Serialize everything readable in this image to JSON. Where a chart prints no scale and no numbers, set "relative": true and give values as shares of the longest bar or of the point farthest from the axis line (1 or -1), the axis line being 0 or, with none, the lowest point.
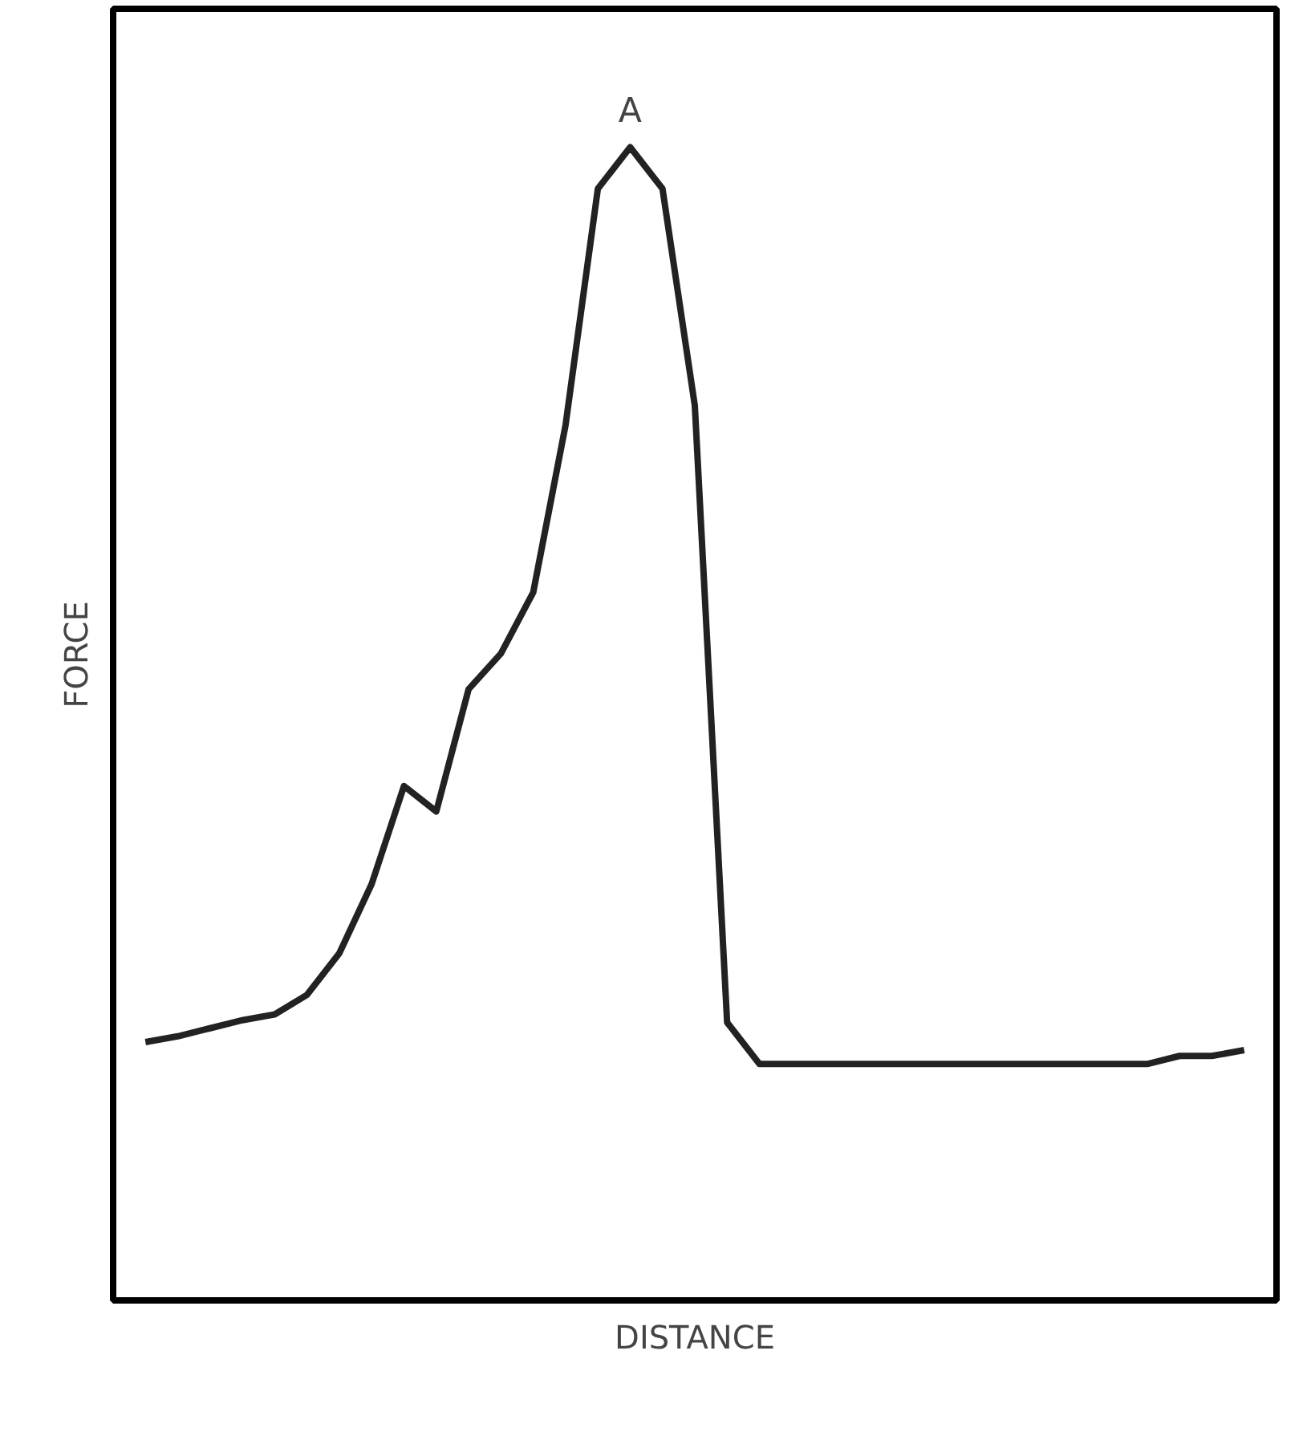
{
  "chart_data": {
    "type": "line",
    "relative": true,
    "xlabel": "DISTANCE",
    "ylabel": "FORCE",
    "categories": [
      null,
      null,
      null,
      null,
      null,
      null,
      null,
      null,
      null,
      null,
      null,
      null,
      null,
      null,
      null,
      null,
      null,
      null,
      null,
      null,
      null,
      null,
      null,
      null,
      null,
      null,
      null,
      null,
      null,
      null,
      null,
      null,
      null,
      null,
      null
    ],
    "series": [
      {
        "color": "#222222",
        "values": [
          0.224,
          0.229,
          0.236,
          0.243,
          0.248,
          0.265,
          0.301,
          0.361,
          0.446,
          0.424,
          0.53,
          0.561,
          0.614,
          0.759,
          0.964,
          1.0,
          0.964,
          0.776,
          0.241,
          0.205,
          0.205,
          0.205,
          0.205,
          0.205,
          0.205,
          0.205,
          0.205,
          0.205,
          0.205,
          0.205,
          0.205,
          0.205,
          0.212,
          0.212,
          0.217
        ]
      }
    ],
    "annotations": [
      "A"
    ],
    "grid": false,
    "tick_labels": false
  }
}
